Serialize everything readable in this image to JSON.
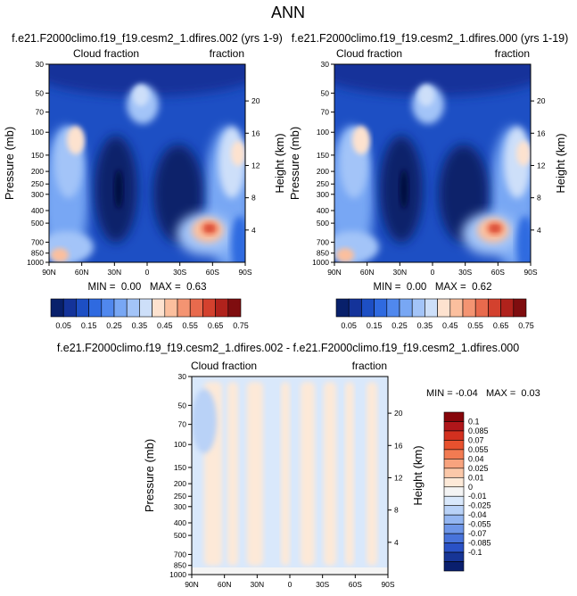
{
  "figure": {
    "title": "ANN"
  },
  "chart_data": [
    {
      "type": "heatmap",
      "title": "f.e21.F2000climo.f19_f19.cesm2_1.dfires.002 (yrs 1-9)",
      "left_label": "Cloud fraction",
      "right_label": "fraction",
      "ylabel": "Pressure (mb)",
      "y2label": "Height (km)",
      "x_ticks": [
        "90N",
        "60N",
        "30N",
        "0",
        "30S",
        "60S",
        "90S"
      ],
      "y_ticks": [
        "30",
        "50",
        "70",
        "100",
        "150",
        "200",
        "250",
        "300",
        "400",
        "500",
        "700",
        "850",
        "1000"
      ],
      "y2_ticks": [
        "20",
        "16",
        "12",
        "8",
        "4"
      ],
      "min": 0.0,
      "max": 0.63,
      "stats_text": "MIN =  0.00   MAX =  0.63",
      "colorbar_labels": [
        "0.05",
        "0.15",
        "0.25",
        "0.35",
        "0.45",
        "0.55",
        "0.65",
        "0.75"
      ]
    },
    {
      "type": "heatmap",
      "title": "f.e21.F2000climo.f19_f19.cesm2_1.dfires.000 (yrs 1-19)",
      "left_label": "Cloud fraction",
      "right_label": "fraction",
      "ylabel": "Pressure (mb)",
      "y2label": "Height (km)",
      "x_ticks": [
        "90N",
        "60N",
        "30N",
        "0",
        "30S",
        "60S",
        "90S"
      ],
      "y_ticks": [
        "30",
        "50",
        "70",
        "100",
        "150",
        "200",
        "250",
        "300",
        "400",
        "500",
        "700",
        "850",
        "1000"
      ],
      "y2_ticks": [
        "20",
        "16",
        "12",
        "8",
        "4"
      ],
      "min": 0.0,
      "max": 0.62,
      "stats_text": "MIN =  0.00   MAX =  0.62",
      "colorbar_labels": [
        "0.05",
        "0.15",
        "0.25",
        "0.35",
        "0.45",
        "0.55",
        "0.65",
        "0.75"
      ]
    },
    {
      "type": "heatmap",
      "title": "f.e21.F2000climo.f19_f19.cesm2_1.dfires.002 - f.e21.F2000climo.f19_f19.cesm2_1.dfires.000",
      "left_label": "Cloud fraction",
      "right_label": "fraction",
      "ylabel": "Pressure (mb)",
      "y2label": "Height (km)",
      "x_ticks": [
        "90N",
        "60N",
        "30N",
        "0",
        "30S",
        "60S",
        "90S"
      ],
      "y_ticks": [
        "30",
        "50",
        "70",
        "100",
        "150",
        "200",
        "250",
        "300",
        "400",
        "500",
        "700",
        "850",
        "1000"
      ],
      "y2_ticks": [
        "20",
        "16",
        "12",
        "8",
        "4"
      ],
      "min": -0.04,
      "max": 0.03,
      "stats_text": "MIN = -0.04   MAX =  0.03",
      "colorbar_labels": [
        "0.1",
        "0.085",
        "0.07",
        "0.055",
        "0.04",
        "0.025",
        "0.01",
        "0",
        "-0.01",
        "-0.025",
        "-0.04",
        "-0.055",
        "-0.07",
        "-0.085",
        "-0.1"
      ]
    }
  ],
  "colors": {
    "seq": [
      "#08206b",
      "#14339a",
      "#1d4fc4",
      "#2f6ae0",
      "#5088ee",
      "#78a7f4",
      "#a3c4f8",
      "#cddff9",
      "#fde2cf",
      "#fbbf9e",
      "#f49472",
      "#e86a4d",
      "#d3412e",
      "#b0221c",
      "#7f0d0f"
    ],
    "diff": [
      "#87050a",
      "#b0161a",
      "#d3301f",
      "#e7512e",
      "#f27b52",
      "#f8a37e",
      "#fbc8a9",
      "#fde9d8",
      "#f4f4f4",
      "#d9e8fb",
      "#b9d2f7",
      "#94b6f1",
      "#6e96e8",
      "#4873db",
      "#2a52c6",
      "#173596",
      "#0a1f6e"
    ]
  }
}
